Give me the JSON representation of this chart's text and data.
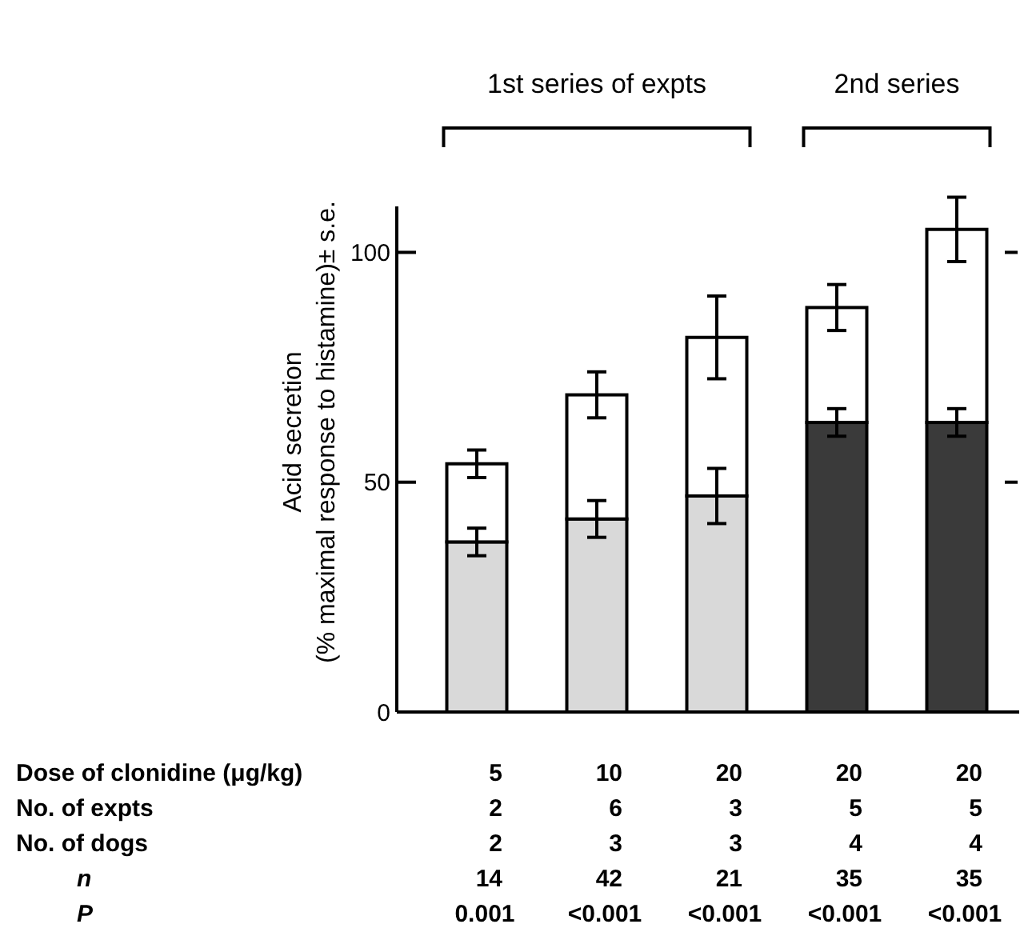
{
  "chart_data": {
    "type": "bar",
    "stacked": true,
    "ylabel": "Acid secretion\n(% maximal response to histamine)± s.e.",
    "xlabel": "Dose of clonidine (μg/kg)",
    "categories": [
      "5",
      "10",
      "20",
      "20",
      "20"
    ],
    "series": [
      {
        "colors": [
          "#d9d9d9",
          "#d9d9d9",
          "#d9d9d9",
          "#3a3a3a",
          "#3a3a3a"
        ],
        "values": [
          37,
          42,
          47,
          63,
          63
        ],
        "errors": [
          3,
          4,
          6,
          3,
          3
        ]
      },
      {
        "color": "#ffffff",
        "values": [
          17,
          27,
          34.5,
          25,
          42
        ],
        "errors": [
          3,
          5,
          9,
          5,
          7
        ]
      }
    ],
    "ylim": [
      0,
      110
    ],
    "yticks": [
      0,
      50,
      100
    ],
    "grid": false,
    "annotations": [
      "1st series of expts",
      "2nd series",
      "No. of expts",
      "2 6 3 5 5",
      "No. of dogs",
      "2 3 3 4 4",
      "n",
      "14 42 21 35 35",
      "P",
      "0.001 <0.001 <0.001 <0.001 <0.001"
    ]
  }
}
